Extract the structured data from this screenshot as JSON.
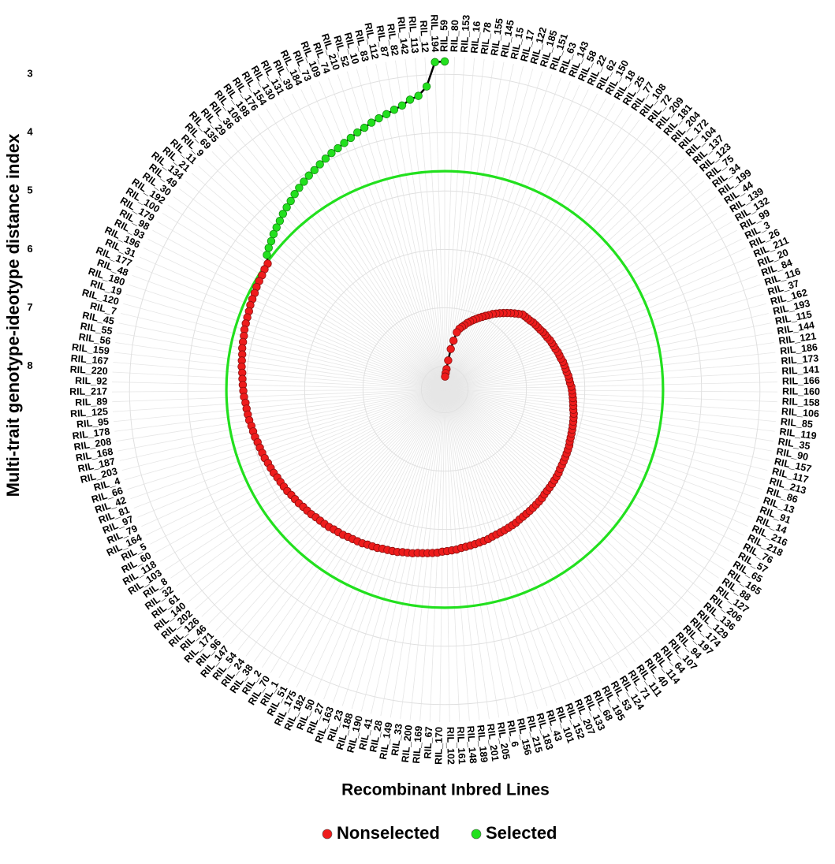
{
  "chart_data": {
    "type": "radial",
    "y_label": "Multi-trait genotype-ideotype distance index",
    "x_label": "Recombinant Inbred Lines",
    "categories": [
      "RIL_59",
      "RIL_194",
      "RIL_12",
      "RIL_113",
      "RIL_142",
      "RIL_82",
      "RIL_87",
      "RIL_112",
      "RIL_83",
      "RIL_10",
      "RIL_52",
      "RIL_210",
      "RIL_74",
      "RIL_109",
      "RIL_73",
      "RIL_184",
      "RIL_39",
      "RIL_131",
      "RIL_130",
      "RIL_154",
      "RIL_176",
      "RIL_198",
      "RIL_105",
      "RIL_36",
      "RIL_29",
      "RIL_135",
      "RIL_69",
      "RIL_9",
      "RIL_11",
      "RIL_21",
      "RIL_134",
      "RIL_49",
      "RIL_30",
      "RIL_192",
      "RIL_100",
      "RIL_179",
      "RIL_98",
      "RIL_93",
      "RIL_196",
      "RIL_31",
      "RIL_177",
      "RIL_48",
      "RIL_180",
      "RIL_19",
      "RIL_120",
      "RIL_7",
      "RIL_45",
      "RIL_55",
      "RIL_56",
      "RIL_159",
      "RIL_167",
      "RIL_220",
      "RIL_92",
      "RIL_217",
      "RIL_89",
      "RIL_125",
      "RIL_95",
      "RIL_178",
      "RIL_208",
      "RIL_168",
      "RIL_187",
      "RIL_203",
      "RIL_4",
      "RIL_66",
      "RIL_42",
      "RIL_81",
      "RIL_97",
      "RIL_79",
      "RIL_164",
      "RIL_5",
      "RIL_60",
      "RIL_118",
      "RIL_103",
      "RIL_8",
      "RIL_32",
      "RIL_61",
      "RIL_140",
      "RIL_202",
      "RIL_126",
      "RIL_46",
      "RIL_171",
      "RIL_96",
      "RIL_147",
      "RIL_54",
      "RIL_24",
      "RIL_38",
      "RIL_2",
      "RIL_70",
      "RIL_1",
      "RIL_51",
      "RIL_175",
      "RIL_182",
      "RIL_50",
      "RIL_27",
      "RIL_163",
      "RIL_23",
      "RIL_188",
      "RIL_190",
      "RIL_41",
      "RIL_28",
      "RIL_149",
      "RIL_33",
      "RIL_200",
      "RIL_169",
      "RIL_67",
      "RIL_170",
      "RIL_102",
      "RIL_161",
      "RIL_148",
      "RIL_189",
      "RIL_201",
      "RIL_205",
      "RIL_6",
      "RIL_156",
      "RIL_215",
      "RIL_183",
      "RIL_43",
      "RIL_101",
      "RIL_152",
      "RIL_207",
      "RIL_133",
      "RIL_68",
      "RIL_195",
      "RIL_53",
      "RIL_124",
      "RIL_71",
      "RIL_111",
      "RIL_40",
      "RIL_114",
      "RIL_64",
      "RIL_107",
      "RIL_94",
      "RIL_197",
      "RIL_174",
      "RIL_129",
      "RIL_136",
      "RIL_206",
      "RIL_127",
      "RIL_88",
      "RIL_165",
      "RIL_65",
      "RIL_57",
      "RIL_76",
      "RIL_218",
      "RIL_216",
      "RIL_14",
      "RIL_91",
      "RIL_13",
      "RIL_86",
      "RIL_213",
      "RIL_117",
      "RIL_157",
      "RIL_90",
      "RIL_35",
      "RIL_119",
      "RIL_85",
      "RIL_106",
      "RIL_158",
      "RIL_160",
      "RIL_166",
      "RIL_141",
      "RIL_173",
      "RIL_186",
      "RIL_121",
      "RIL_144",
      "RIL_115",
      "RIL_193",
      "RIL_162",
      "RIL_37",
      "RIL_116",
      "RIL_84",
      "RIL_20",
      "RIL_211",
      "RIL_26",
      "RIL_3",
      "RIL_99",
      "RIL_132",
      "RIL_139",
      "RIL_44",
      "RIL_199",
      "RIL_34",
      "RIL_75",
      "RIL_123",
      "RIL_137",
      "RIL_104",
      "RIL_172",
      "RIL_204",
      "RIL_181",
      "RIL_209",
      "RIL_72",
      "RIL_108",
      "RIL_77",
      "RIL_25",
      "RIL_18",
      "RIL_150",
      "RIL_62",
      "RIL_22",
      "RIL_58",
      "RIL_143",
      "RIL_63",
      "RIL_151",
      "RIL_185",
      "RIL_122",
      "RIL_17",
      "RIL_15",
      "RIL_145",
      "RIL_155",
      "RIL_78",
      "RIL_16",
      "RIL_153",
      "RIL_80"
    ],
    "values": [
      2.78,
      2.79,
      3.2,
      3.35,
      3.4,
      3.48,
      3.53,
      3.58,
      3.62,
      3.66,
      3.71,
      3.75,
      3.8,
      3.84,
      3.88,
      3.91,
      3.95,
      3.99,
      4.03,
      4.06,
      4.1,
      4.14,
      4.18,
      4.23,
      4.27,
      4.31,
      4.36,
      4.4,
      4.44,
      4.49,
      4.53,
      4.58,
      4.68,
      4.69,
      4.71,
      4.72,
      4.73,
      4.75,
      4.76,
      4.77,
      4.79,
      4.8,
      4.81,
      4.82,
      4.84,
      4.85,
      4.86,
      4.88,
      4.89,
      4.9,
      4.92,
      4.93,
      4.94,
      4.95,
      4.96,
      4.98,
      4.99,
      5.0,
      5.01,
      5.03,
      5.04,
      5.05,
      5.07,
      5.08,
      5.09,
      5.1,
      5.12,
      5.13,
      5.14,
      5.16,
      5.17,
      5.18,
      5.19,
      5.21,
      5.22,
      5.23,
      5.25,
      5.26,
      5.27,
      5.29,
      5.3,
      5.31,
      5.32,
      5.34,
      5.35,
      5.36,
      5.38,
      5.39,
      5.4,
      5.41,
      5.43,
      5.44,
      5.45,
      5.47,
      5.48,
      5.49,
      5.5,
      5.52,
      5.53,
      5.54,
      5.56,
      5.57,
      5.58,
      5.59,
      5.6,
      5.62,
      5.63,
      5.64,
      5.65,
      5.67,
      5.68,
      5.69,
      5.7,
      5.71,
      5.72,
      5.73,
      5.75,
      5.76,
      5.77,
      5.78,
      5.79,
      5.8,
      5.81,
      5.83,
      5.84,
      5.85,
      5.86,
      5.87,
      5.88,
      5.89,
      5.9,
      5.92,
      5.93,
      5.94,
      5.95,
      5.96,
      5.97,
      5.98,
      6.0,
      6.01,
      6.02,
      6.03,
      6.04,
      6.05,
      6.06,
      6.08,
      6.09,
      6.1,
      6.11,
      6.12,
      6.13,
      6.14,
      6.15,
      6.17,
      6.18,
      6.19,
      6.2,
      6.21,
      6.22,
      6.23,
      6.25,
      6.26,
      6.27,
      6.29,
      6.3,
      6.31,
      6.32,
      6.34,
      6.35,
      6.36,
      6.38,
      6.39,
      6.4,
      6.41,
      6.43,
      6.44,
      6.45,
      6.47,
      6.48,
      6.49,
      6.5,
      6.52,
      6.53,
      6.54,
      6.55,
      6.59,
      6.63,
      6.67,
      6.71,
      6.75,
      6.79,
      6.83,
      6.87,
      6.92,
      6.96,
      7.0,
      7.04,
      7.08,
      7.12,
      7.16,
      7.2,
      7.25,
      7.29,
      7.33,
      7.4,
      7.55,
      7.7,
      7.9,
      8.05,
      8.12,
      8.18
    ],
    "threshold": 4.66,
    "ylim": [
      8.4,
      2.7
    ],
    "yticks": [
      3,
      4,
      5,
      6,
      7,
      8
    ],
    "grid": true,
    "line_color": "#000000",
    "legend_position": "bottom",
    "legend": [
      {
        "name": "Nonselected",
        "color": "#ee1c1c"
      },
      {
        "name": "Selected",
        "color": "#22e01e"
      }
    ]
  }
}
